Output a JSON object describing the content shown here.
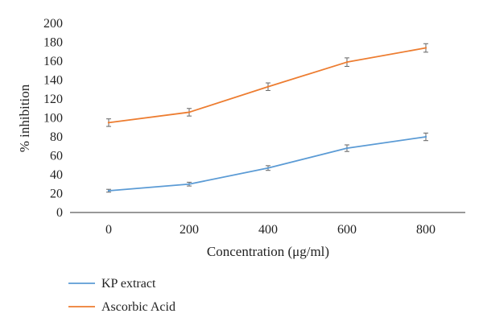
{
  "chart_data": {
    "type": "line",
    "title": "",
    "xlabel": "Concentration (μg/ml)",
    "ylabel": "% inhibition",
    "x": [
      0,
      200,
      400,
      600,
      800
    ],
    "xticks": [
      "0",
      "200",
      "400",
      "600",
      "800"
    ],
    "yticks": [
      "0",
      "20",
      "40",
      "60",
      "80",
      "100",
      "120",
      "140",
      "160",
      "180",
      "200"
    ],
    "ylim": [
      0,
      200
    ],
    "grid": false,
    "legend_position": "bottom-left",
    "series": [
      {
        "name": "KP extract",
        "color": "#5b9bd5",
        "values": [
          23,
          30,
          47,
          68,
          80
        ],
        "errors": [
          1.5,
          2,
          2.5,
          3.5,
          4
        ]
      },
      {
        "name": "Ascorbic Acid",
        "color": "#ed7d31",
        "values": [
          95,
          106,
          133,
          159,
          174
        ],
        "errors": [
          4,
          4,
          4,
          4.5,
          4.5
        ]
      }
    ]
  }
}
